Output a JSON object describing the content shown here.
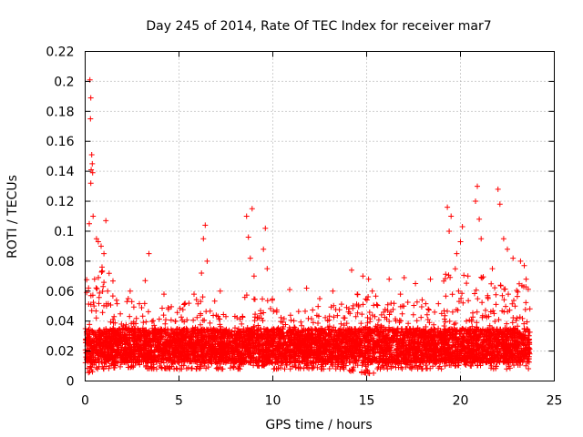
{
  "chart_data": {
    "type": "scatter",
    "title": "Day 245 of 2014, Rate Of TEC Index for receiver mar7",
    "xlabel": "GPS time / hours",
    "ylabel": "ROTI / TECUs",
    "xlim": [
      0,
      25
    ],
    "ylim": [
      0,
      0.22
    ],
    "xticks": [
      0,
      5,
      10,
      15,
      20,
      25
    ],
    "xtick_labels": [
      "0",
      "5",
      "10",
      "15",
      "20",
      "25"
    ],
    "yticks": [
      0,
      0.02,
      0.04,
      0.06,
      0.08,
      0.1,
      0.12,
      0.14,
      0.16,
      0.18,
      0.2,
      0.22
    ],
    "ytick_labels": [
      "0",
      "0.02",
      "0.04",
      "0.06",
      "0.08",
      "0.1",
      "0.12",
      "0.14",
      "0.16",
      "0.18",
      "0.2",
      "0.22"
    ],
    "grid": true,
    "marker": "+",
    "marker_color": "#ff0000",
    "series": [
      {
        "name": "ROTI",
        "points": [
          [
            0.25,
            0.201
          ],
          [
            0.3,
            0.189
          ],
          [
            0.28,
            0.175
          ],
          [
            0.35,
            0.151
          ],
          [
            0.38,
            0.145
          ],
          [
            0.32,
            0.141
          ],
          [
            0.3,
            0.132
          ],
          [
            0.4,
            0.139
          ],
          [
            0.42,
            0.11
          ],
          [
            0.22,
            0.105
          ],
          [
            0.6,
            0.095
          ],
          [
            0.7,
            0.093
          ],
          [
            0.85,
            0.09
          ],
          [
            1.1,
            0.107
          ],
          [
            1.0,
            0.085
          ],
          [
            0.5,
            0.068
          ],
          [
            0.9,
            0.076
          ],
          [
            1.2,
            0.06
          ],
          [
            3.4,
            0.085
          ],
          [
            3.2,
            0.067
          ],
          [
            6.4,
            0.104
          ],
          [
            6.3,
            0.095
          ],
          [
            6.5,
            0.08
          ],
          [
            6.2,
            0.072
          ],
          [
            5.8,
            0.058
          ],
          [
            8.6,
            0.11
          ],
          [
            8.9,
            0.115
          ],
          [
            8.7,
            0.096
          ],
          [
            8.8,
            0.082
          ],
          [
            9.0,
            0.07
          ],
          [
            9.6,
            0.102
          ],
          [
            9.5,
            0.088
          ],
          [
            9.7,
            0.075
          ],
          [
            10.9,
            0.061
          ],
          [
            11.8,
            0.062
          ],
          [
            13.2,
            0.06
          ],
          [
            14.2,
            0.074
          ],
          [
            14.8,
            0.07
          ],
          [
            15.1,
            0.068
          ],
          [
            16.2,
            0.068
          ],
          [
            17.0,
            0.069
          ],
          [
            17.6,
            0.065
          ],
          [
            18.4,
            0.068
          ],
          [
            15.3,
            0.06
          ],
          [
            14.5,
            0.058
          ],
          [
            19.3,
            0.116
          ],
          [
            19.5,
            0.11
          ],
          [
            19.4,
            0.1
          ],
          [
            19.8,
            0.085
          ],
          [
            20.1,
            0.103
          ],
          [
            20.0,
            0.093
          ],
          [
            20.4,
            0.07
          ],
          [
            20.9,
            0.13
          ],
          [
            20.8,
            0.12
          ],
          [
            21.0,
            0.108
          ],
          [
            21.1,
            0.095
          ],
          [
            22.0,
            0.128
          ],
          [
            22.1,
            0.118
          ],
          [
            22.3,
            0.095
          ],
          [
            22.5,
            0.088
          ],
          [
            22.8,
            0.082
          ],
          [
            23.2,
            0.08
          ],
          [
            23.4,
            0.077
          ],
          [
            23.5,
            0.068
          ],
          [
            21.7,
            0.075
          ],
          [
            4.2,
            0.058
          ],
          [
            2.4,
            0.06
          ],
          [
            7.2,
            0.06
          ],
          [
            12.5,
            0.055
          ],
          [
            16.8,
            0.058
          ]
        ]
      }
    ],
    "dense_band": {
      "segments": [
        [
          0,
          0.5,
          0.005,
          0.07
        ],
        [
          0.5,
          1.5,
          0.008,
          0.075
        ],
        [
          1.5,
          3,
          0.008,
          0.055
        ],
        [
          3,
          5.5,
          0.008,
          0.052
        ],
        [
          5.5,
          6,
          0.008,
          0.06
        ],
        [
          6,
          7,
          0.008,
          0.058
        ],
        [
          7,
          8.5,
          0.008,
          0.045
        ],
        [
          8.5,
          9,
          0.01,
          0.06
        ],
        [
          9,
          10,
          0.01,
          0.055
        ],
        [
          10,
          12,
          0.008,
          0.048
        ],
        [
          12,
          14,
          0.008,
          0.052
        ],
        [
          14,
          15.5,
          0.005,
          0.058
        ],
        [
          15.5,
          18,
          0.008,
          0.055
        ],
        [
          18,
          19,
          0.008,
          0.052
        ],
        [
          19,
          20.5,
          0.01,
          0.075
        ],
        [
          20.5,
          21.5,
          0.01,
          0.07
        ],
        [
          21.5,
          23.7,
          0.008,
          0.065
        ]
      ],
      "core_range": [
        0.012,
        0.035
      ]
    }
  }
}
